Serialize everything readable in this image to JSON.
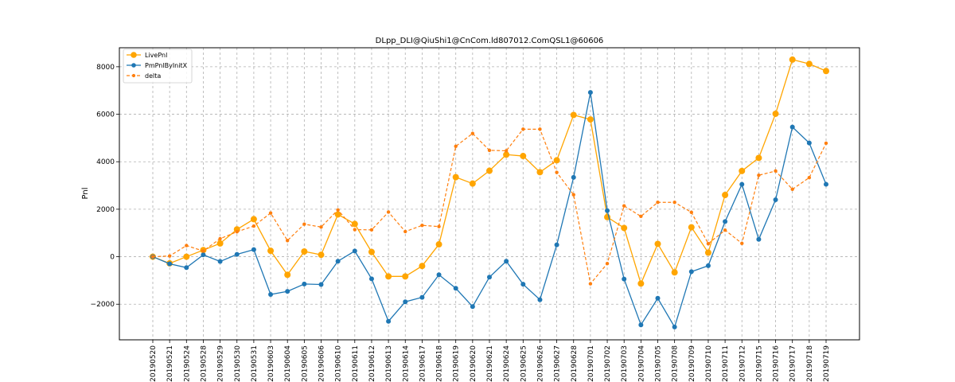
{
  "chart_data": {
    "type": "line",
    "title": "DLpp_DLI@QiuShi1@CnCom.ld807012.ComQSL1@60606",
    "xlabel": "",
    "ylabel": "Pnl",
    "ylim": [
      -3500,
      8800
    ],
    "yticks": [
      -2000,
      0,
      2000,
      4000,
      6000,
      8000
    ],
    "grid": true,
    "legend_position": "top-left",
    "categories": [
      "20190520",
      "20190521",
      "20190524",
      "20190528",
      "20190529",
      "20190530",
      "20190531",
      "20190603",
      "20190604",
      "20190605",
      "20190606",
      "20190610",
      "20190611",
      "20190612",
      "20190613",
      "20190614",
      "20190617",
      "20190618",
      "20190619",
      "20190620",
      "20190621",
      "20190624",
      "20190625",
      "20190626",
      "20190627",
      "20190628",
      "20190701",
      "20190702",
      "20190703",
      "20190704",
      "20190705",
      "20190708",
      "20190709",
      "20190710",
      "20190711",
      "20190712",
      "20190715",
      "20190716",
      "20190717",
      "20190718",
      "20190719"
    ],
    "series": [
      {
        "name": "LivePnl",
        "color": "#ffa500",
        "style": "solid",
        "values": [
          0,
          -280,
          0,
          280,
          560,
          1150,
          1580,
          250,
          -760,
          220,
          80,
          1780,
          1380,
          200,
          -830,
          -830,
          -390,
          520,
          3350,
          3080,
          3620,
          4300,
          4240,
          3560,
          4060,
          5970,
          5780,
          1670,
          1210,
          -1130,
          540,
          -660,
          1240,
          170,
          2600,
          3610,
          4160,
          6020,
          8300,
          8120,
          7820
        ]
      },
      {
        "name": "PmPnlByInitX",
        "color": "#1f77b4",
        "style": "solid",
        "values": [
          0,
          -300,
          -460,
          80,
          -200,
          100,
          300,
          -1590,
          -1460,
          -1150,
          -1170,
          -190,
          240,
          -930,
          -2720,
          -1900,
          -1710,
          -760,
          -1330,
          -2100,
          -860,
          -190,
          -1160,
          -1810,
          500,
          3340,
          6920,
          1940,
          -940,
          -2870,
          -1750,
          -2960,
          -630,
          -380,
          1480,
          3050,
          730,
          2400,
          5460,
          4790,
          3050
        ]
      },
      {
        "name": "delta",
        "color": "#ff7f0e",
        "style": "dashed",
        "values": [
          0,
          30,
          470,
          240,
          760,
          1050,
          1290,
          1840,
          680,
          1370,
          1250,
          1970,
          1140,
          1130,
          1880,
          1060,
          1320,
          1270,
          4650,
          5190,
          4480,
          4460,
          5370,
          5370,
          3550,
          2610,
          -1140,
          -290,
          2140,
          1700,
          2290,
          2290,
          1870,
          550,
          1120,
          560,
          3430,
          3610,
          2840,
          3330,
          4780
        ]
      }
    ]
  }
}
